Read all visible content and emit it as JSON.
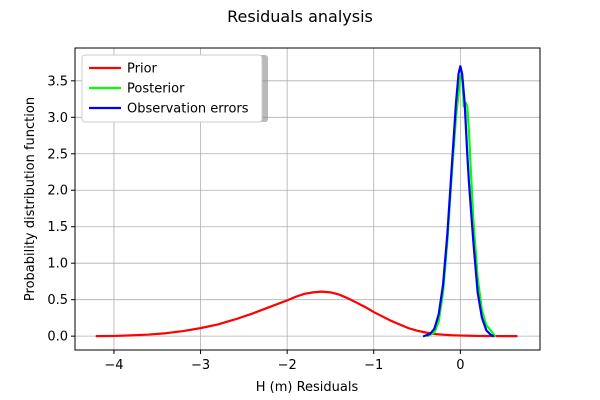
{
  "chart_data": {
    "type": "line",
    "title": "Residuals analysis",
    "xlabel": "H (m) Residuals",
    "ylabel": "Probability distribution function",
    "xlim": [
      -4.45,
      0.92
    ],
    "ylim": [
      -0.19,
      3.95
    ],
    "xticks": [
      -4,
      -3,
      -2,
      -1,
      0
    ],
    "xtick_labels": [
      "−4",
      "−3",
      "−2",
      "−1",
      "0"
    ],
    "yticks": [
      0.0,
      0.5,
      1.0,
      1.5,
      2.0,
      2.5,
      3.0,
      3.5
    ],
    "ytick_labels": [
      "0.0",
      "0.5",
      "1.0",
      "1.5",
      "2.0",
      "2.5",
      "3.0",
      "3.5"
    ],
    "grid": true,
    "legend_position": "top-left",
    "series": [
      {
        "name": "Prior",
        "color": "#ff0000",
        "x": [
          -4.2,
          -4.0,
          -3.8,
          -3.6,
          -3.4,
          -3.2,
          -3.0,
          -2.8,
          -2.6,
          -2.4,
          -2.2,
          -2.0,
          -1.9,
          -1.8,
          -1.7,
          -1.6,
          -1.5,
          -1.4,
          -1.3,
          -1.2,
          -1.1,
          -1.0,
          -0.9,
          -0.8,
          -0.7,
          -0.6,
          -0.5,
          -0.4,
          -0.3,
          -0.2,
          -0.1,
          0.0,
          0.1,
          0.2,
          0.3,
          0.4,
          0.5,
          0.65
        ],
        "y": [
          0.0,
          0.003,
          0.01,
          0.022,
          0.04,
          0.07,
          0.11,
          0.16,
          0.23,
          0.31,
          0.4,
          0.49,
          0.54,
          0.58,
          0.6,
          0.61,
          0.6,
          0.57,
          0.52,
          0.46,
          0.4,
          0.33,
          0.27,
          0.21,
          0.16,
          0.11,
          0.075,
          0.05,
          0.03,
          0.02,
          0.012,
          0.008,
          0.005,
          0.003,
          0.002,
          0.001,
          0.0005,
          0.0
        ]
      },
      {
        "name": "Posterior",
        "color": "#00ff00",
        "x": [
          -0.38,
          -0.3,
          -0.25,
          -0.2,
          -0.15,
          -0.1,
          -0.05,
          0.0,
          0.02,
          0.04,
          0.06,
          0.08,
          0.1,
          0.12,
          0.15,
          0.2,
          0.25,
          0.3,
          0.35,
          0.4
        ],
        "y": [
          0.0,
          0.05,
          0.2,
          0.6,
          1.3,
          2.2,
          3.0,
          3.55,
          3.6,
          3.15,
          3.2,
          3.15,
          2.8,
          2.3,
          1.6,
          0.8,
          0.35,
          0.15,
          0.08,
          0.0
        ]
      },
      {
        "name": "Observation errors",
        "color": "#0000ff",
        "x": [
          -0.42,
          -0.35,
          -0.3,
          -0.25,
          -0.2,
          -0.15,
          -0.1,
          -0.05,
          -0.02,
          0.0,
          0.02,
          0.05,
          0.08,
          0.1,
          0.15,
          0.2,
          0.25,
          0.3,
          0.35,
          0.38
        ],
        "y": [
          0.0,
          0.03,
          0.1,
          0.3,
          0.7,
          1.4,
          2.3,
          3.2,
          3.6,
          3.7,
          3.6,
          3.2,
          2.5,
          2.1,
          1.3,
          0.6,
          0.25,
          0.08,
          0.02,
          0.0
        ]
      }
    ]
  }
}
